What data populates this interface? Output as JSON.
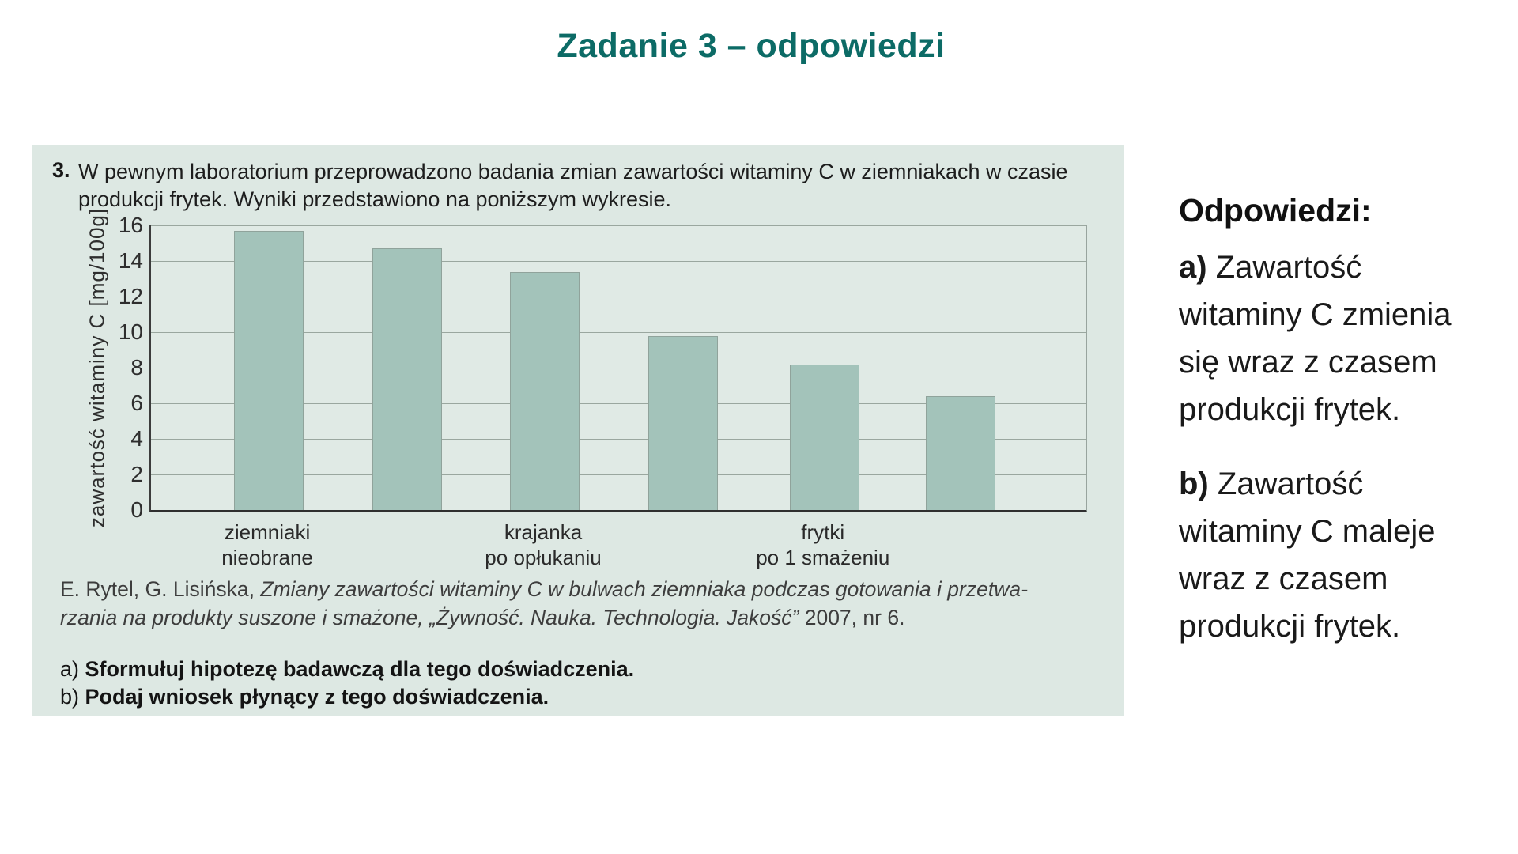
{
  "title": "Zadanie 3 – odpowiedzi",
  "colors": {
    "accent_teal": "#0c6b66",
    "panel_bg": "#dde8e3",
    "bar_fill": "#a3c3ba"
  },
  "question": {
    "number": "3.",
    "lines": [
      "W pewnym laboratorium przeprowadzono badania zmian zawartości witaminy C w ziemniakach w czasie",
      "produkcji frytek. Wyniki przedstawiono na poniższym wykresie."
    ]
  },
  "chart_data": {
    "type": "bar",
    "title": "",
    "xlabel": "",
    "ylabel": "zawartość witaminy C [mg/100g]",
    "ylim": [
      0,
      16
    ],
    "ytick_step": 2,
    "grid": true,
    "legend": "none",
    "values": [
      15.7,
      14.7,
      13.4,
      9.8,
      8.2,
      6.4
    ],
    "bar_centers_pct": [
      12.6,
      27.4,
      42.1,
      56.9,
      72.0,
      86.6
    ],
    "categories": [
      {
        "bar_index": 0,
        "lines": [
          "ziemniaki",
          "nieobrane"
        ]
      },
      {
        "bar_index": 2,
        "lines": [
          "krajanka",
          "po opłukaniu"
        ]
      },
      {
        "bar_index": 4,
        "lines": [
          "frytki",
          "po 1 smażeniu"
        ]
      }
    ]
  },
  "citation": {
    "line1": [
      {
        "text": "E. Rytel, G. Lisińska, ",
        "italic": false
      },
      {
        "text": "Zmiany zawartości witaminy C w bulwach ziemniaka podczas gotowania i przetwa-",
        "italic": true
      }
    ],
    "line2": [
      {
        "text": "rzania na produkty suszone i smażone, „Żywność. Nauka. Technologia. Jakość”",
        "italic": true
      },
      {
        "text": " 2007, nr 6.",
        "italic": false
      }
    ]
  },
  "tasks": {
    "a": {
      "prefix": "a)",
      "text": "Sformułuj hipotezę badawczą dla tego doświadczenia."
    },
    "b": {
      "prefix": "b)",
      "text": "Podaj wniosek płynący z tego doświadczenia."
    }
  },
  "answers": {
    "heading": "Odpowiedzi:",
    "a": {
      "prefix": "a)",
      "lines": [
        "Zawartość",
        "witaminy C zmienia",
        "się wraz z czasem",
        "produkcji frytek."
      ]
    },
    "b": {
      "prefix": "b)",
      "lines": [
        "Zawartość",
        "witaminy C maleje",
        "wraz z czasem",
        "produkcji frytek."
      ]
    }
  }
}
